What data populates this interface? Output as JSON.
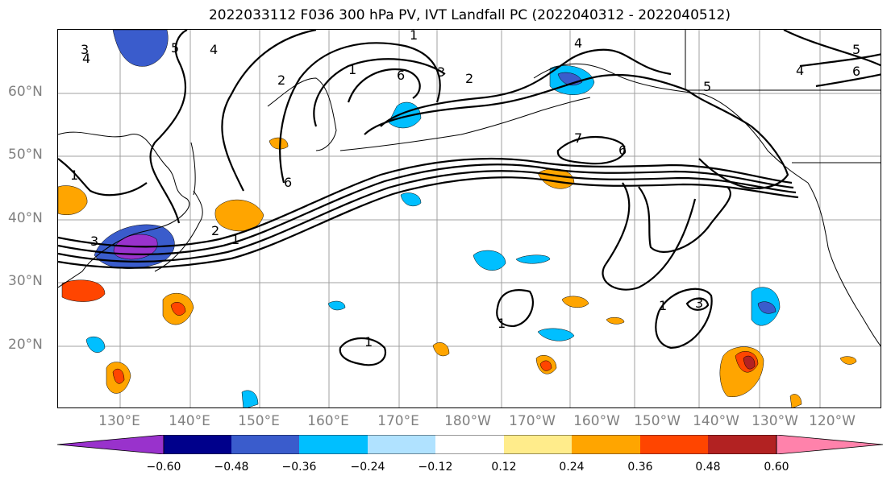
{
  "title": "2022033112 F036 300 hPa PV, IVT Landfall PC (2022040312 - 2022040512)",
  "lat_labels": [
    "60°N",
    "50°N",
    "40°N",
    "30°N",
    "20°N"
  ],
  "lon_labels": [
    "130°E",
    "140°E",
    "150°E",
    "160°E",
    "170°E",
    "180°W",
    "170°W",
    "160°W",
    "150°W",
    "140°W",
    "130°W",
    "120°W"
  ],
  "colorbar": {
    "ticks": [
      "−0.60",
      "−0.48",
      "−0.36",
      "−0.24",
      "−0.12",
      "0.12",
      "0.24",
      "0.36",
      "0.48",
      "0.60"
    ],
    "colors": [
      "#9932cc",
      "#00008b",
      "#3a5ccc",
      "#00bfff",
      "#b0e2ff",
      "#ffffff",
      "#ffec8b",
      "#ffa500",
      "#ff4500",
      "#b22222",
      "#ff82ab"
    ]
  },
  "contour_labels": [
    "1",
    "2",
    "3",
    "4",
    "5",
    "6",
    "7"
  ],
  "colors": {
    "grid": "#a0a0a0",
    "axis_text": "#808080",
    "contour": "#000000"
  }
}
